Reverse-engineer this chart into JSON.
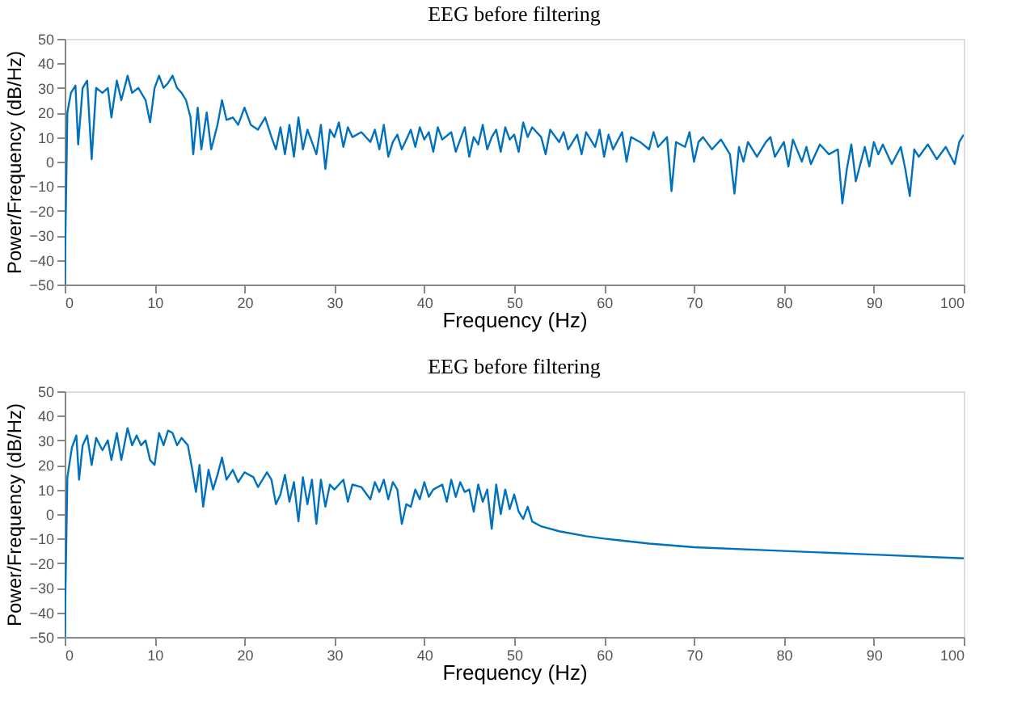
{
  "chart_data": [
    {
      "type": "line",
      "title": "EEG before filtering",
      "xlabel": "Frequency (Hz)",
      "ylabel": "Power/Frequency (dB/Hz)",
      "xlim": [
        0,
        100
      ],
      "xticks": [
        0,
        10,
        20,
        30,
        40,
        50,
        60,
        70,
        80,
        90,
        100
      ],
      "ylim": [
        -50,
        50
      ],
      "yticks": [
        -50,
        -40,
        -30,
        -20,
        -10,
        0,
        10,
        20,
        30,
        40,
        50
      ],
      "grid": false,
      "series": [
        {
          "color": "#0072bd",
          "x": [
            0,
            0.3,
            0.7,
            1.2,
            1.5,
            2,
            2.5,
            3,
            3.5,
            4.2,
            4.8,
            5.2,
            5.8,
            6.3,
            7,
            7.5,
            8.2,
            9,
            9.5,
            10,
            10.5,
            11,
            11.5,
            12,
            12.5,
            13,
            13.5,
            14,
            14.3,
            14.8,
            15.2,
            15.8,
            16.3,
            17,
            17.5,
            18,
            18.7,
            19.3,
            20,
            20.7,
            21.5,
            22.3,
            23,
            23.5,
            24,
            24.5,
            25,
            25.5,
            26,
            26.5,
            27,
            27.5,
            28,
            28.5,
            29,
            29.5,
            30,
            30.5,
            31,
            31.5,
            32,
            33,
            34,
            34.5,
            35,
            35.5,
            36,
            36.5,
            37,
            37.5,
            38,
            38.5,
            39,
            39.5,
            40,
            40.5,
            41,
            41.5,
            42,
            43,
            43.5,
            44,
            44.5,
            45,
            45.5,
            46,
            46.5,
            47,
            47.5,
            48,
            48.5,
            49,
            49.5,
            50,
            50.5,
            51,
            51.5,
            52,
            53,
            53.5,
            54,
            55,
            55.5,
            56,
            57,
            57.5,
            58,
            59,
            59.5,
            60,
            60.5,
            61,
            62,
            62.5,
            63,
            64,
            65,
            65.5,
            66,
            67,
            67.5,
            68,
            69,
            69.5,
            70,
            70.5,
            71,
            72,
            73,
            74,
            74.5,
            75,
            75.5,
            76,
            77,
            78,
            78.5,
            79,
            80,
            80.5,
            81,
            82,
            82.5,
            83,
            84,
            85,
            86,
            86.5,
            87,
            87.5,
            88,
            89,
            89.5,
            90,
            90.5,
            91,
            92,
            93,
            93.5,
            94,
            94.5,
            95,
            96,
            97,
            98,
            99,
            99.5,
            100
          ],
          "values": [
            -50,
            20,
            28,
            31,
            7,
            30,
            33,
            1,
            30,
            28,
            30,
            18,
            33,
            25,
            35,
            28,
            30,
            25,
            16,
            30,
            35,
            30,
            32,
            35,
            30,
            28,
            25,
            18,
            3,
            22,
            5,
            20,
            5,
            15,
            25,
            17,
            18,
            15,
            22,
            15,
            13,
            18,
            10,
            5,
            14,
            3,
            15,
            2,
            18,
            5,
            13,
            8,
            3,
            15,
            -3,
            13,
            10,
            16,
            6,
            14,
            10,
            12,
            8,
            13,
            5,
            15,
            2,
            8,
            11,
            5,
            9,
            13,
            6,
            14,
            9,
            12,
            4,
            14,
            9,
            12,
            4,
            9,
            14,
            2,
            10,
            7,
            15,
            5,
            10,
            13,
            4,
            14,
            9,
            11,
            4,
            16,
            10,
            14,
            10,
            3,
            13,
            8,
            12,
            5,
            11,
            3,
            12,
            6,
            13,
            2,
            11,
            5,
            12,
            0,
            10,
            8,
            5,
            12,
            6,
            10,
            -12,
            8,
            6,
            12,
            0,
            8,
            10,
            5,
            9,
            3,
            -13,
            6,
            0,
            8,
            2,
            8,
            10,
            2,
            8,
            -2,
            9,
            0,
            6,
            -1,
            7,
            3,
            5,
            -17,
            -3,
            7,
            -8,
            6,
            -2,
            8,
            3,
            7,
            -1,
            6,
            -3,
            -14,
            5,
            2,
            7,
            1,
            6,
            -1,
            8,
            11
          ]
        }
      ]
    },
    {
      "type": "line",
      "title": "EEG before filtering",
      "xlabel": "Frequency (Hz)",
      "ylabel": "Power/Frequency (dB/Hz)",
      "xlim": [
        0,
        100
      ],
      "xticks": [
        0,
        10,
        20,
        30,
        40,
        50,
        60,
        70,
        80,
        90,
        100
      ],
      "ylim": [
        -50,
        50
      ],
      "yticks": [
        -50,
        -40,
        -30,
        -20,
        -10,
        0,
        10,
        20,
        30,
        40,
        50
      ],
      "grid": false,
      "series": [
        {
          "color": "#0072bd",
          "x": [
            0,
            0.3,
            0.8,
            1.3,
            1.6,
            2,
            2.5,
            3,
            3.5,
            4.2,
            4.8,
            5.2,
            5.8,
            6.3,
            7,
            7.5,
            8,
            8.5,
            9,
            9.5,
            10,
            10.5,
            11,
            11.5,
            12,
            12.5,
            13,
            13.7,
            14.2,
            14.6,
            15,
            15.4,
            16,
            16.5,
            17,
            17.5,
            18,
            18.7,
            19.3,
            20,
            21,
            21.5,
            22.5,
            23,
            23.5,
            24,
            24.5,
            25,
            25.5,
            26,
            26.5,
            27,
            27.5,
            28,
            28.5,
            29,
            29.5,
            30,
            31,
            31.5,
            32,
            33,
            34,
            34.5,
            35,
            35.5,
            36,
            36.5,
            37,
            37.5,
            38,
            38.5,
            39,
            39.5,
            40,
            40.5,
            41,
            42,
            42.5,
            43,
            43.5,
            44,
            44.5,
            45,
            45.5,
            46,
            46.5,
            47,
            47.5,
            48,
            48.5,
            49,
            49.5,
            50,
            50.5,
            51,
            51.5,
            52,
            53,
            55,
            58,
            60,
            65,
            70,
            80,
            90,
            100
          ],
          "values": [
            -50,
            15,
            27,
            32,
            14,
            28,
            32,
            20,
            31,
            26,
            30,
            22,
            33,
            22,
            35,
            28,
            32,
            28,
            30,
            22,
            20,
            33,
            28,
            34,
            33,
            28,
            31,
            28,
            18,
            9,
            20,
            3,
            18,
            10,
            16,
            23,
            14,
            18,
            13,
            17,
            15,
            11,
            17,
            14,
            4,
            8,
            16,
            5,
            13,
            -3,
            15,
            4,
            14,
            -4,
            14,
            3,
            12,
            10,
            14,
            5,
            12,
            11,
            6,
            13,
            9,
            14,
            6,
            13,
            10,
            -4,
            4,
            3,
            10,
            6,
            13,
            7,
            10,
            12,
            5,
            14,
            7,
            13,
            9,
            10,
            1,
            12,
            5,
            10,
            -6,
            12,
            0,
            10,
            2,
            8,
            1,
            -2,
            3,
            -3,
            -5,
            -7,
            -9,
            -10,
            -12,
            -13.5,
            -15,
            -16.5,
            -18
          ]
        }
      ]
    }
  ]
}
